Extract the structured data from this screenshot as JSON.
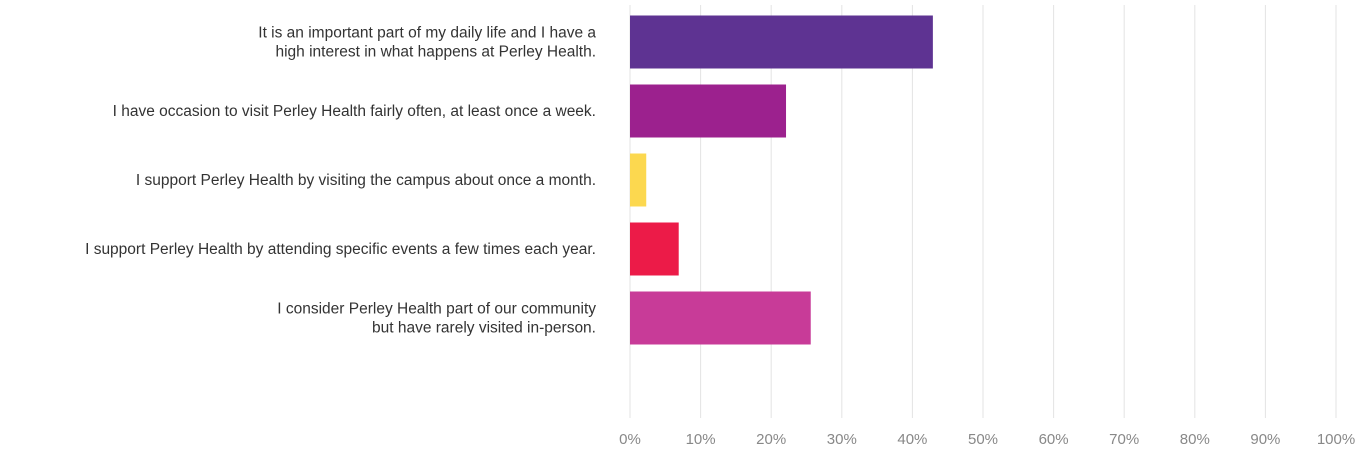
{
  "chart_data": {
    "type": "bar",
    "orientation": "horizontal",
    "title": "",
    "xlabel": "",
    "ylabel": "",
    "categories": [
      [
        "It is an important part of my daily life and I have a",
        "high interest in what happens at Perley Health."
      ],
      [
        "I have occasion to visit Perley Health fairly often, at least once a week."
      ],
      [
        "I support Perley Health by visiting the campus about once a month."
      ],
      [
        "I support Perley Health by attending specific events a few times each year."
      ],
      [
        "I consider Perley Health part of our community",
        "but have rarely visited in-person."
      ]
    ],
    "values": [
      42.9,
      22.1,
      2.3,
      6.9,
      25.6
    ],
    "colors": [
      "#5e3392",
      "#9c218e",
      "#fcd84f",
      "#ec1b48",
      "#c83b98"
    ],
    "xlim": [
      0,
      100
    ],
    "xticks": [
      0,
      10,
      20,
      30,
      40,
      50,
      60,
      70,
      80,
      90,
      100
    ],
    "xtick_labels": [
      "0%",
      "10%",
      "20%",
      "30%",
      "40%",
      "50%",
      "60%",
      "70%",
      "80%",
      "90%",
      "100%"
    ],
    "grid": true,
    "legend": "none"
  }
}
